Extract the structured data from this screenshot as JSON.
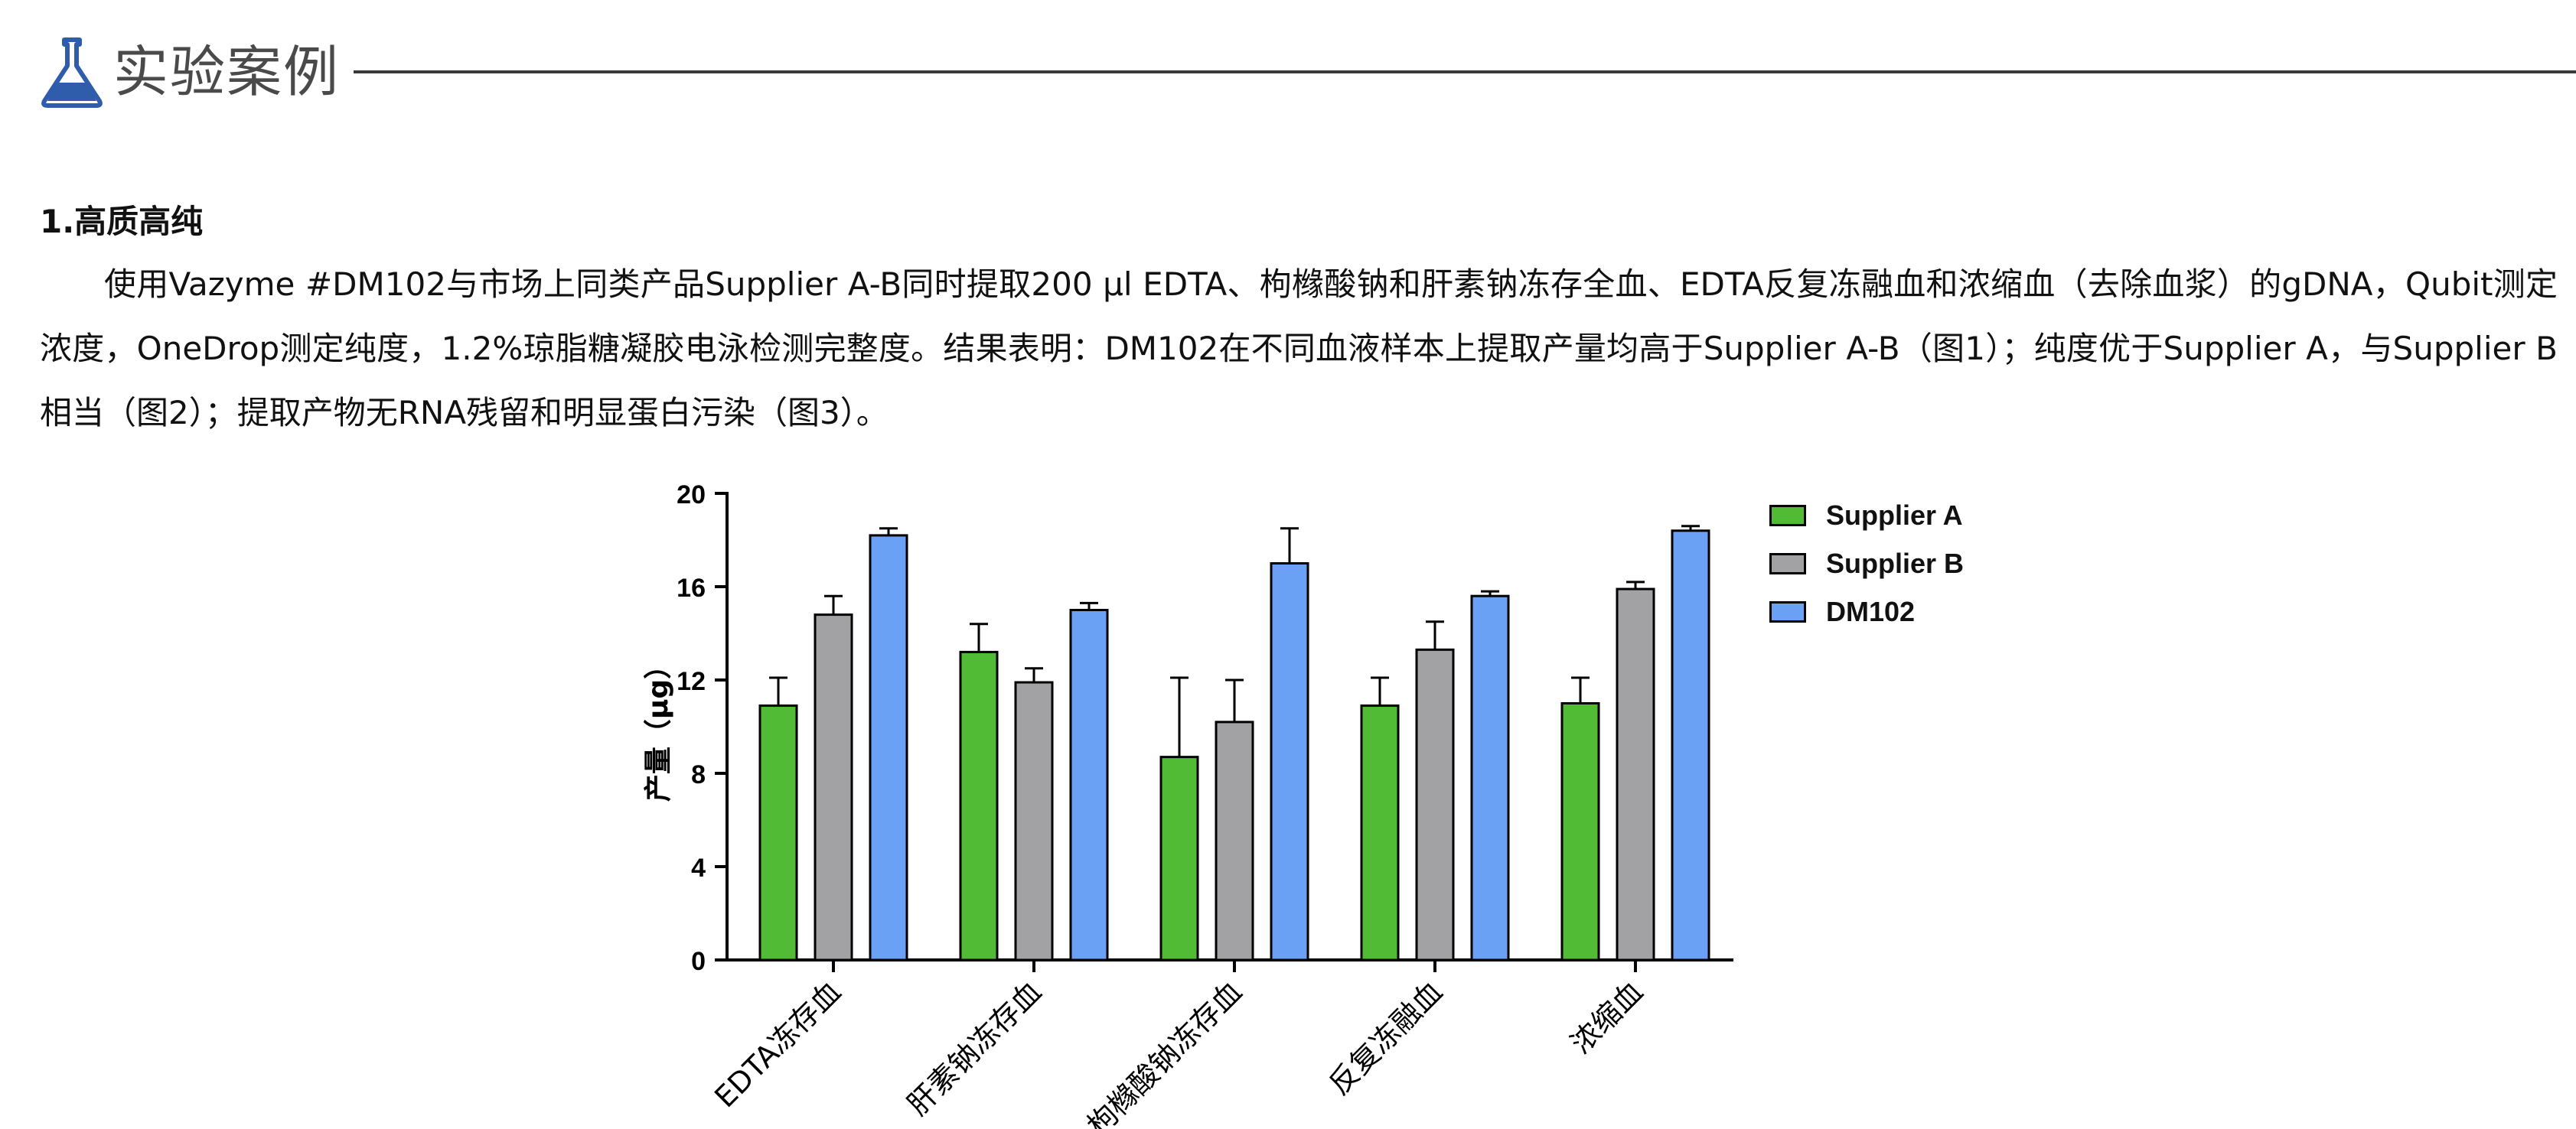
{
  "header": {
    "title": "实验案例",
    "icon": "flask-icon",
    "icon_color": "#2f5cab"
  },
  "section": {
    "heading": "1.高质高纯",
    "paragraph": "使用Vazyme #DM102与市场上同类产品Supplier A-B同时提取200 μl EDTA、枸橼酸钠和肝素钠冻存全血、EDTA反复冻融血和浓缩血（去除血浆）的gDNA，Qubit测定浓度，OneDrop测定纯度，1.2%琼脂糖凝胶电泳检测完整度。结果表明：DM102在不同血液样本上提取产量均高于Supplier A-B（图1）；纯度优于Supplier A，与Supplier B相当（图2）；提取产物无RNA残留和明显蛋白污染（图3）。"
  },
  "chart_data": {
    "type": "bar",
    "categories": [
      "EDTA冻存血",
      "肝素钠冻存血",
      "枸橼酸钠冻存血",
      "反复冻融血",
      "浓缩血"
    ],
    "series": [
      {
        "name": "Supplier A",
        "color": "#52bb36",
        "values": [
          10.9,
          13.2,
          8.7,
          10.9,
          11.0
        ],
        "errors": [
          1.2,
          1.2,
          3.4,
          1.2,
          1.1
        ]
      },
      {
        "name": "Supplier B",
        "color": "#a2a2a5",
        "values": [
          14.8,
          11.9,
          10.2,
          13.3,
          15.9
        ],
        "errors": [
          0.8,
          0.6,
          1.8,
          1.2,
          0.3
        ]
      },
      {
        "name": "DM102",
        "color": "#6aa1f4",
        "values": [
          18.2,
          15.0,
          17.0,
          15.6,
          18.4
        ],
        "errors": [
          0.3,
          0.3,
          1.5,
          0.2,
          0.2
        ]
      }
    ],
    "ylabel": "产量（μg）",
    "xlabel": "",
    "ylim": [
      0,
      20
    ],
    "yticks": [
      0,
      4,
      8,
      12,
      16,
      20
    ],
    "grid": false,
    "legend_position": "right"
  }
}
